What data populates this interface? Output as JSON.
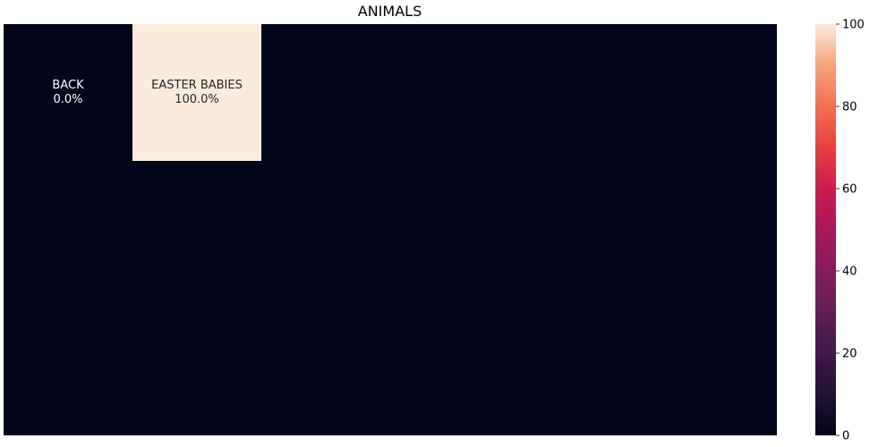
{
  "chart_data": {
    "type": "heatmap",
    "title": "ANIMALS",
    "cells": [
      {
        "label": "BACK",
        "value": 0.0,
        "value_text": "0.0%"
      },
      {
        "label": "EASTER BABIES",
        "value": 100.0,
        "value_text": "100.0%"
      }
    ],
    "background_value": 0,
    "colorbar": {
      "min": 0,
      "max": 100,
      "ticks": [
        0,
        20,
        40,
        60,
        80,
        100
      ],
      "colormap": "rocket"
    },
    "colors": {
      "low": "#03051a",
      "high": "#faebdd",
      "light_text": "#ffffff",
      "dark_text": "#262626"
    }
  }
}
